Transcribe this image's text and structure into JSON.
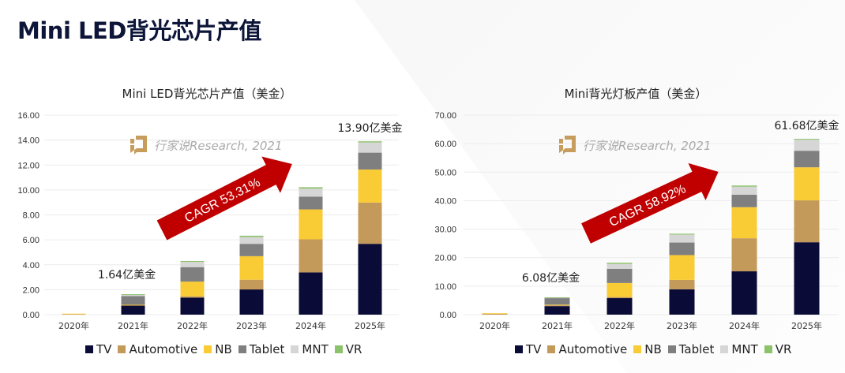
{
  "page_title": "Mini LED背光芯片产值",
  "watermark": "行家说Research, 2021",
  "colors": {
    "TV": "#0a0b36",
    "Automotive": "#c49a5a",
    "NB": "#f9cb35",
    "Tablet": "#7f7f7f",
    "MNT": "#d6d6d6",
    "VR": "#8cc26a",
    "arrow": "#c00000",
    "logo": "#c79d5d"
  },
  "chart_data": [
    {
      "type": "bar",
      "stacked": true,
      "title": "Mini LED背光芯片产值（美金）",
      "categories": [
        "2020年",
        "2021年",
        "2022年",
        "2023年",
        "2024年",
        "2025年"
      ],
      "ylim": [
        0,
        16
      ],
      "yticks": [
        "0.00",
        "2.00",
        "4.00",
        "6.00",
        "8.00",
        "10.00",
        "12.00",
        "14.00",
        "16.00"
      ],
      "grid": true,
      "legend": "bottom",
      "series": [
        {
          "name": "TV",
          "values": [
            0,
            0.74,
            1.37,
            2.02,
            3.39,
            5.68
          ]
        },
        {
          "name": "Automotive",
          "values": [
            0.05,
            0.03,
            0.1,
            0.78,
            2.65,
            3.31
          ]
        },
        {
          "name": "NB",
          "values": [
            0.03,
            0.02,
            1.18,
            1.89,
            2.4,
            2.65
          ]
        },
        {
          "name": "Tablet",
          "values": [
            0,
            0.7,
            1.16,
            0.99,
            1.03,
            1.35
          ]
        },
        {
          "name": "MNT",
          "values": [
            0,
            0.09,
            0.42,
            0.55,
            0.64,
            0.82
          ]
        },
        {
          "name": "VR",
          "values": [
            0,
            0.06,
            0.07,
            0.1,
            0.11,
            0.09
          ]
        }
      ],
      "annotations": [
        {
          "text": "1.64亿美金",
          "category": "2021年",
          "value": 1.64
        },
        {
          "text": "13.90亿美金",
          "category": "2025年",
          "value": 13.9
        }
      ],
      "cagr_label": "CAGR 53.31%"
    },
    {
      "type": "bar",
      "stacked": true,
      "title": "Mini背光灯板产值（美金）",
      "categories": [
        "2020年",
        "2021年",
        "2022年",
        "2023年",
        "2024年",
        "2025年"
      ],
      "ylim": [
        0,
        70
      ],
      "yticks": [
        "0.00",
        "10.00",
        "20.00",
        "30.00",
        "40.00",
        "50.00",
        "60.00",
        "70.00"
      ],
      "grid": true,
      "legend": "bottom",
      "series": [
        {
          "name": "TV",
          "values": [
            0,
            3.0,
            5.8,
            8.9,
            15.2,
            25.4
          ]
        },
        {
          "name": "Automotive",
          "values": [
            0.4,
            0.3,
            0.4,
            3.3,
            11.6,
            14.7
          ]
        },
        {
          "name": "NB",
          "values": [
            0.1,
            0.2,
            4.9,
            8.7,
            10.9,
            11.6
          ]
        },
        {
          "name": "Tablet",
          "values": [
            0,
            2.3,
            5.0,
            4.4,
            4.4,
            5.8
          ]
        },
        {
          "name": "MNT",
          "values": [
            0,
            0.2,
            1.7,
            2.8,
            2.8,
            3.9
          ]
        },
        {
          "name": "VR",
          "values": [
            0,
            0.08,
            0.4,
            0.3,
            0.4,
            0.28
          ]
        }
      ],
      "annotations": [
        {
          "text": "6.08亿美金",
          "category": "2021年",
          "value": 6.08
        },
        {
          "text": "61.68亿美金",
          "category": "2025年",
          "value": 61.68
        }
      ],
      "cagr_label": "CAGR 58.92%"
    }
  ]
}
